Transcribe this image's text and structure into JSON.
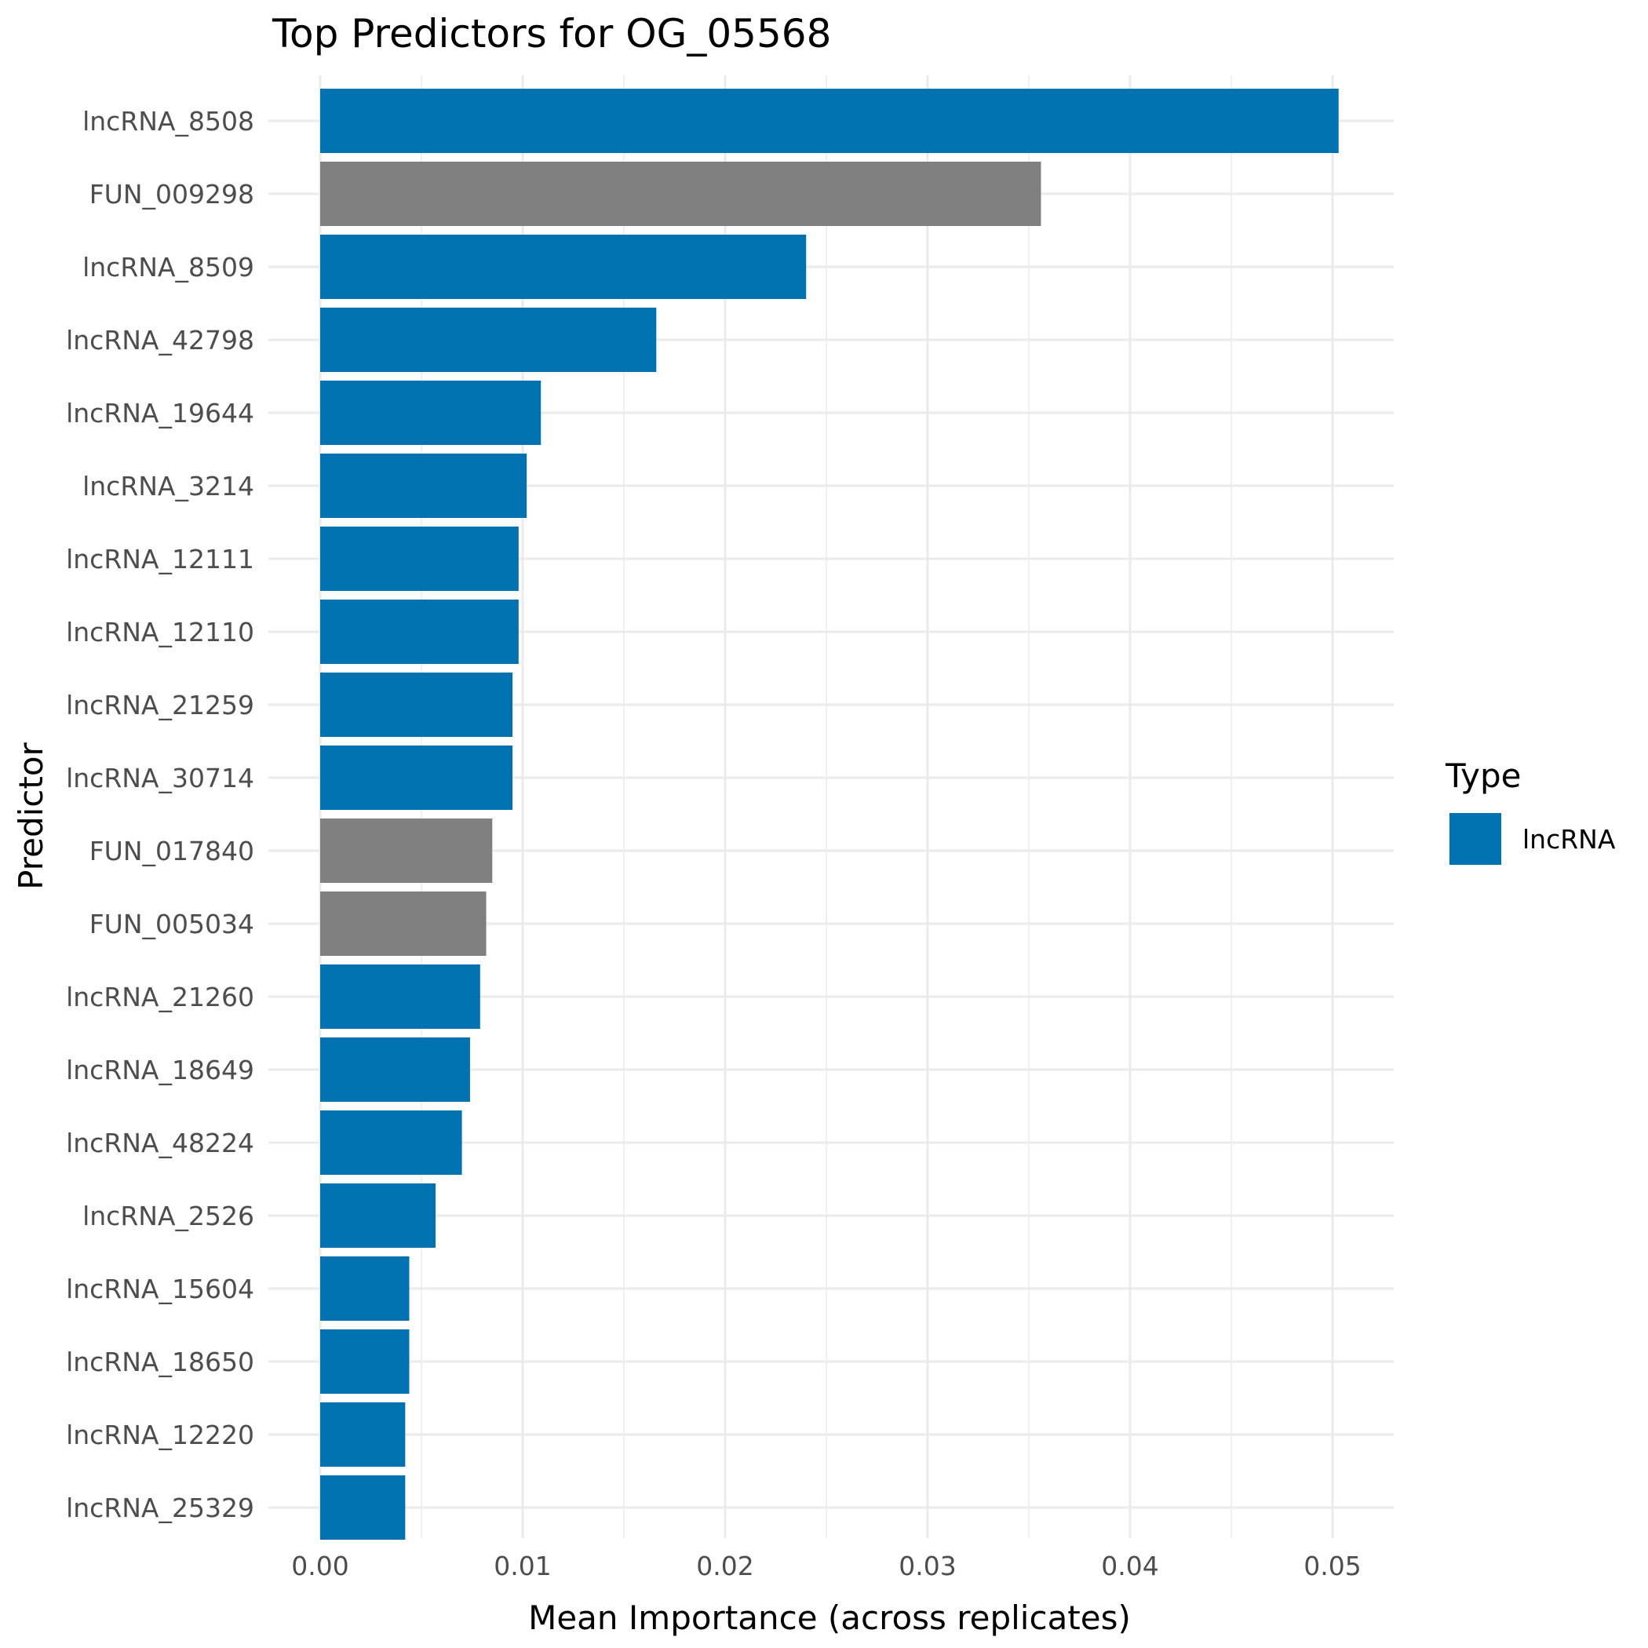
{
  "chart_data": {
    "type": "bar",
    "orientation": "horizontal",
    "title": "Top Predictors for OG_05568",
    "xlabel": "Mean Importance (across replicates)",
    "ylabel": "Predictor",
    "xlim": [
      0,
      0.053
    ],
    "x_ticks": [
      "0.00",
      "0.01",
      "0.02",
      "0.03",
      "0.04",
      "0.05"
    ],
    "x_tick_values": [
      0,
      0.01,
      0.02,
      0.03,
      0.04,
      0.05
    ],
    "grid": true,
    "legend": {
      "title": "Type",
      "placement": "right",
      "entries": [
        {
          "label": "lncRNA",
          "color": "#0072B2"
        }
      ]
    },
    "colors": {
      "lncRNA": "#0072B2",
      "other": "#808080"
    },
    "categories": [
      "lncRNA_8508",
      "FUN_009298",
      "lncRNA_8509",
      "lncRNA_42798",
      "lncRNA_19644",
      "lncRNA_3214",
      "lncRNA_12111",
      "lncRNA_12110",
      "lncRNA_21259",
      "lncRNA_30714",
      "FUN_017840",
      "FUN_005034",
      "lncRNA_21260",
      "lncRNA_18649",
      "lncRNA_48224",
      "lncRNA_2526",
      "lncRNA_15604",
      "lncRNA_18650",
      "lncRNA_12220",
      "lncRNA_25329"
    ],
    "values": [
      0.0503,
      0.0356,
      0.024,
      0.0166,
      0.0109,
      0.0102,
      0.0098,
      0.0098,
      0.0095,
      0.0095,
      0.0085,
      0.0082,
      0.0079,
      0.0074,
      0.007,
      0.0057,
      0.0044,
      0.0044,
      0.0042,
      0.0042
    ],
    "types": [
      "lncRNA",
      "other",
      "lncRNA",
      "lncRNA",
      "lncRNA",
      "lncRNA",
      "lncRNA",
      "lncRNA",
      "lncRNA",
      "lncRNA",
      "other",
      "other",
      "lncRNA",
      "lncRNA",
      "lncRNA",
      "lncRNA",
      "lncRNA",
      "lncRNA",
      "lncRNA",
      "lncRNA"
    ]
  }
}
